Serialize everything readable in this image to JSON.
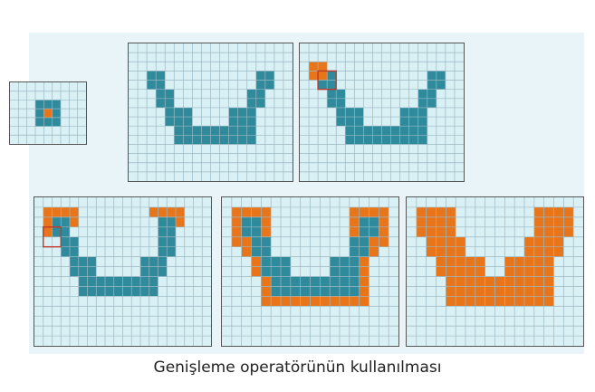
{
  "caption": "Genişleme operatörünün kullanılması",
  "colors": {
    "background": "#e9f4f8",
    "grid_fill": "#d9f0f4",
    "grid_line": "#9bb9c3",
    "grid_border": "#555555",
    "object": "#2f8a9c",
    "dilated": "#e87519",
    "kernel_outline": "#c0392b"
  },
  "figures": [
    {
      "id": "structuring-element",
      "grid_cols": 9,
      "grid_rows": 7,
      "object_rects": [
        [
          3,
          2,
          3,
          3
        ]
      ],
      "orange_rects": [
        [
          4,
          3,
          1,
          1
        ]
      ],
      "kernel_box": null
    },
    {
      "id": "original-shape",
      "grid_cols": 18,
      "grid_rows": 15,
      "object_rects": [
        [
          2,
          3,
          2,
          2
        ],
        [
          14,
          3,
          2,
          2
        ],
        [
          3,
          5,
          2,
          2
        ],
        [
          13,
          5,
          2,
          2
        ],
        [
          4,
          7,
          3,
          2
        ],
        [
          11,
          7,
          3,
          2
        ],
        [
          5,
          9,
          9,
          2
        ]
      ],
      "orange_rects": [],
      "kernel_box": null
    },
    {
      "id": "kernel-on-corner",
      "grid_cols": 18,
      "grid_rows": 15,
      "object_rects": [
        [
          2,
          3,
          2,
          2
        ],
        [
          14,
          3,
          2,
          2
        ],
        [
          3,
          5,
          2,
          2
        ],
        [
          13,
          5,
          2,
          2
        ],
        [
          4,
          7,
          3,
          2
        ],
        [
          11,
          7,
          3,
          2
        ],
        [
          5,
          9,
          9,
          2
        ]
      ],
      "orange_rects": [
        [
          1,
          2,
          2,
          2
        ]
      ],
      "kernel_box": [
        2,
        3,
        2,
        2
      ]
    },
    {
      "id": "partial-dilation",
      "grid_cols": 20,
      "grid_rows": 15,
      "object_rects": [
        [
          2,
          2,
          2,
          2
        ],
        [
          14,
          2,
          2,
          2
        ],
        [
          3,
          4,
          2,
          2
        ],
        [
          14,
          4,
          2,
          2
        ],
        [
          4,
          6,
          3,
          2
        ],
        [
          12,
          6,
          3,
          2
        ],
        [
          5,
          8,
          9,
          2
        ]
      ],
      "orange_rects": [
        [
          1,
          1,
          4,
          1
        ],
        [
          1,
          2,
          1,
          2
        ],
        [
          4,
          2,
          1,
          1
        ],
        [
          13,
          1,
          4,
          1
        ],
        [
          16,
          2,
          1,
          1
        ]
      ],
      "kernel_box": [
        1,
        3,
        2,
        2
      ]
    },
    {
      "id": "dilation-outline",
      "grid_cols": 18,
      "grid_rows": 15,
      "object_rects": [
        [
          2,
          2,
          2,
          2
        ],
        [
          14,
          2,
          2,
          2
        ],
        [
          3,
          4,
          2,
          2
        ],
        [
          13,
          4,
          2,
          2
        ],
        [
          4,
          6,
          3,
          2
        ],
        [
          11,
          6,
          3,
          2
        ],
        [
          5,
          8,
          9,
          2
        ]
      ],
      "orange_rects": [
        [
          1,
          1,
          4,
          1
        ],
        [
          13,
          1,
          4,
          1
        ],
        [
          1,
          2,
          1,
          3
        ],
        [
          4,
          2,
          1,
          2
        ],
        [
          13,
          2,
          1,
          2
        ],
        [
          16,
          2,
          1,
          3
        ],
        [
          2,
          4,
          1,
          2
        ],
        [
          15,
          4,
          1,
          2
        ],
        [
          3,
          6,
          1,
          2
        ],
        [
          14,
          6,
          1,
          2
        ],
        [
          4,
          8,
          1,
          2
        ],
        [
          14,
          8,
          1,
          2
        ],
        [
          4,
          10,
          11,
          1
        ]
      ],
      "kernel_box": null
    },
    {
      "id": "dilated-result",
      "grid_cols": 18,
      "grid_rows": 15,
      "object_rects": [],
      "orange_rects": [
        [
          1,
          1,
          4,
          3
        ],
        [
          13,
          1,
          4,
          3
        ],
        [
          2,
          4,
          4,
          2
        ],
        [
          12,
          4,
          4,
          2
        ],
        [
          3,
          6,
          5,
          2
        ],
        [
          10,
          6,
          5,
          2
        ],
        [
          4,
          8,
          11,
          3
        ]
      ],
      "kernel_box": null
    }
  ]
}
